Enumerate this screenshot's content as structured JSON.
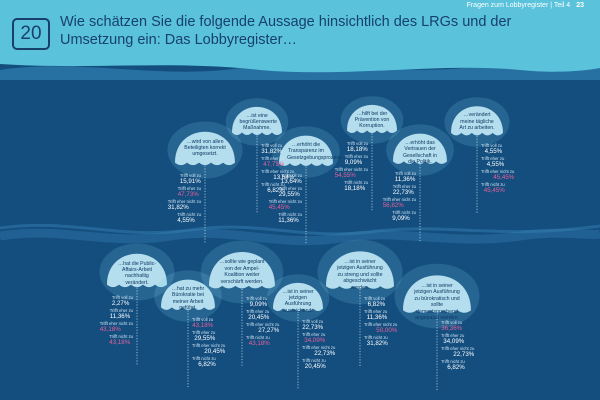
{
  "header": {
    "running_title": "Fragen zum Lobbyregister | Teil 4",
    "page_number": "23",
    "question_number": "20",
    "title": "Wie schätzen Sie die folgende Aussage hinsichtlich des LRGs und der Umsetzung ein: Das Lobbyregister…"
  },
  "colors": {
    "header_bg": "#5ac3db",
    "sea_bg": "#134e7f",
    "highlight": "#e8609a",
    "jelly": "#bfe6f4"
  },
  "statements": [
    {
      "caption": "…wird von allen Beteiligten korrekt umgesetzt.",
      "answers": [
        {
          "label": "Trifft voll zu",
          "value": "15,91%"
        },
        {
          "label": "Trifft eher zu",
          "value": "47,73%",
          "highlight": true
        },
        {
          "label": "Trifft eher nicht zu",
          "value": "31,82%"
        },
        {
          "label": "Trifft nicht zu",
          "value": "4,55%"
        }
      ]
    },
    {
      "caption": "…ist eine begrüßenswerte Maßnahme.",
      "answers": [
        {
          "label": "Trifft voll zu",
          "value": "31,82%"
        },
        {
          "label": "Trifft eher zu",
          "value": "47,73%",
          "highlight": true
        },
        {
          "label": "Trifft eher nicht zu",
          "value": "13,64%"
        },
        {
          "label": "Trifft nicht zu",
          "value": "6,82%"
        }
      ]
    },
    {
      "caption": "…erhöht die Transparenz im Gesetzgebungsprozess.",
      "answers": [
        {
          "label": "Trifft voll zu",
          "value": "13,64%"
        },
        {
          "label": "Trifft eher zu",
          "value": "29,55%"
        },
        {
          "label": "Trifft eher nicht zu",
          "value": "45,45%",
          "highlight": true
        },
        {
          "label": "Trifft nicht zu",
          "value": "11,36%"
        }
      ]
    },
    {
      "caption": "…hilft bei der Prävention von Korruption.",
      "answers": [
        {
          "label": "Trifft voll zu",
          "value": "18,18%"
        },
        {
          "label": "Trifft eher zu",
          "value": "9,09%"
        },
        {
          "label": "Trifft eher nicht zu",
          "value": "54,55%",
          "highlight": true
        },
        {
          "label": "Trifft nicht zu",
          "value": "18,18%"
        }
      ]
    },
    {
      "caption": "…erhöht das Vertrauen der Gesellschaft in die Politik.",
      "answers": [
        {
          "label": "Trifft voll zu",
          "value": "11,36%"
        },
        {
          "label": "Trifft eher zu",
          "value": "22,73%"
        },
        {
          "label": "Trifft eher nicht zu",
          "value": "56,82%",
          "highlight": true
        },
        {
          "label": "Trifft nicht zu",
          "value": "9,09%"
        }
      ]
    },
    {
      "caption": "…verändert meine tägliche Art zu arbeiten.",
      "answers": [
        {
          "label": "Trifft voll zu",
          "value": "4,55%"
        },
        {
          "label": "Trifft eher zu",
          "value": "4,55%"
        },
        {
          "label": "Trifft eher nicht zu",
          "value": "45,45%",
          "highlight": true
        },
        {
          "label": "Trifft nicht zu",
          "value": "45,45%",
          "highlight": true
        }
      ]
    },
    {
      "caption": "…hat die Public-Affairs-Arbeit nachhaltig verändert.",
      "answers": [
        {
          "label": "Trifft voll zu",
          "value": "2,27%"
        },
        {
          "label": "Trifft eher zu",
          "value": "11,36%"
        },
        {
          "label": "Trifft eher nicht zu",
          "value": "43,18%",
          "highlight": true
        },
        {
          "label": "Trifft nicht zu",
          "value": "43,18%",
          "highlight": true
        }
      ]
    },
    {
      "caption": "…hat zu mehr Bürokratie bei meiner Arbeit geführt.",
      "answers": [
        {
          "label": "Trifft voll zu",
          "value": "43,18%",
          "highlight": true
        },
        {
          "label": "Trifft eher zu",
          "value": "29,55%"
        },
        {
          "label": "Trifft eher nicht zu",
          "value": "20,45%"
        },
        {
          "label": "Trifft nicht zu",
          "value": "6,82%"
        }
      ]
    },
    {
      "caption": "…sollte wie geplant von der Ampel-Koalition weiter verschärft werden.",
      "answers": [
        {
          "label": "Trifft voll zu",
          "value": "9,09%"
        },
        {
          "label": "Trifft eher zu",
          "value": "20,45%"
        },
        {
          "label": "Trifft eher nicht zu",
          "value": "27,27%"
        },
        {
          "label": "Trifft nicht zu",
          "value": "43,18%",
          "highlight": true
        }
      ]
    },
    {
      "caption": "…ist in seiner jetzigen Ausführung ausreichend.",
      "answers": [
        {
          "label": "Trifft voll zu",
          "value": "22,73%"
        },
        {
          "label": "Trifft eher zu",
          "value": "34,09%",
          "highlight": true
        },
        {
          "label": "Trifft eher nicht zu",
          "value": "22,73%"
        },
        {
          "label": "Trifft nicht zu",
          "value": "20,45%"
        }
      ]
    },
    {
      "caption": "…ist in seiner jetzigen Ausführung zu streng und sollte abgeschwächt werden.",
      "answers": [
        {
          "label": "Trifft voll zu",
          "value": "6,82%"
        },
        {
          "label": "Trifft eher zu",
          "value": "11,36%"
        },
        {
          "label": "Trifft eher nicht zu",
          "value": "50,00%",
          "highlight": true
        },
        {
          "label": "Trifft nicht zu",
          "value": "31,82%"
        }
      ]
    },
    {
      "caption": "…ist in seiner jetzigen Ausführung zu bürokratisch und sollte dementsprechend angepasst werden.",
      "answers": [
        {
          "label": "Trifft voll zu",
          "value": "36,36%",
          "highlight": true
        },
        {
          "label": "Trifft eher zu",
          "value": "34,09%"
        },
        {
          "label": "Trifft eher nicht zu",
          "value": "22,73%"
        },
        {
          "label": "Trifft nicht zu",
          "value": "6,82%"
        }
      ]
    }
  ]
}
